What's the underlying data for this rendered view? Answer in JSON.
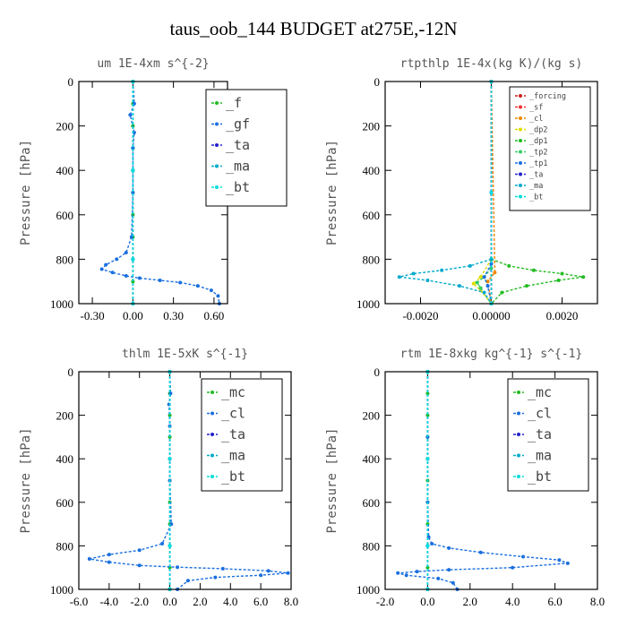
{
  "figure_title": "taus_oob_144  BUDGET at275E,-12N",
  "chart_data": [
    {
      "type": "line",
      "title": "um   1E-4xm s^{-2}",
      "ylabel": "Pressure [hPa]",
      "xlim": [
        -0.4,
        0.7
      ],
      "ylim": [
        1000,
        0
      ],
      "xticks": [
        -0.3,
        0.0,
        0.3,
        0.6
      ],
      "xtick_labels": [
        "-0.30",
        "0.00",
        "0.30",
        "0.60"
      ],
      "yticks": [
        0,
        200,
        400,
        600,
        800,
        1000
      ],
      "legend_position": "top-right",
      "legend": [
        "_f",
        "_gf",
        "_ta",
        "_ma",
        "_bt"
      ],
      "series": [
        {
          "name": "_f",
          "color": "#22bb22",
          "x": [
            0,
            0,
            0,
            0,
            0,
            0,
            0,
            0,
            0,
            0,
            0
          ],
          "y": [
            0,
            100,
            200,
            300,
            400,
            500,
            600,
            700,
            800,
            900,
            1000
          ]
        },
        {
          "name": "_gf",
          "color": "#1a6fdf",
          "x": [
            0,
            0.01,
            -0.02,
            0.01,
            0,
            0,
            -0.01,
            -0.05,
            -0.12,
            -0.2,
            -0.23,
            -0.15,
            -0.05,
            0.05,
            0.2,
            0.35,
            0.48,
            0.58,
            0.63,
            0.64
          ],
          "y": [
            0,
            100,
            150,
            230,
            300,
            500,
            700,
            770,
            800,
            825,
            845,
            860,
            875,
            885,
            895,
            905,
            920,
            940,
            965,
            1000
          ]
        },
        {
          "name": "_ta",
          "color": "#2222cc",
          "x": [
            0,
            0,
            0,
            0
          ],
          "y": [
            0,
            400,
            800,
            1000
          ]
        },
        {
          "name": "_ma",
          "color": "#00aacc",
          "x": [
            0,
            0,
            0,
            0
          ],
          "y": [
            0,
            400,
            800,
            1000
          ]
        },
        {
          "name": "_bt",
          "color": "#00dddd",
          "x": [
            0,
            0,
            0,
            0
          ],
          "y": [
            0,
            400,
            800,
            1000
          ]
        }
      ]
    },
    {
      "type": "line",
      "title": "rtpthlp   1E-4x(kg K)/(kg s)",
      "ylabel": "Pressure [hPa]",
      "xlim": [
        -0.003,
        0.003
      ],
      "ylim": [
        1000,
        0
      ],
      "xticks": [
        -0.002,
        0.0,
        0.002
      ],
      "xtick_labels": [
        "-0.0020",
        "0.00000",
        "0.0020"
      ],
      "yticks": [
        0,
        200,
        400,
        600,
        800,
        1000
      ],
      "legend_position": "top-right",
      "legend": [
        "_forcing",
        "_sf",
        "_cl",
        "_dp2",
        "_dp1",
        "_tp2",
        "_tp1",
        "_ta",
        "_ma",
        "_bt"
      ],
      "series": [
        {
          "name": "_forcing",
          "color": "#cc2222",
          "x": [
            0,
            0,
            0
          ],
          "y": [
            0,
            500,
            1000
          ]
        },
        {
          "name": "_sf",
          "color": "#ee3333",
          "x": [
            0,
            0,
            0
          ],
          "y": [
            0,
            500,
            1000
          ]
        },
        {
          "name": "_cl",
          "color": "#ee8800",
          "x": [
            0,
            0.0001,
            -0.0001,
            0
          ],
          "y": [
            0,
            860,
            900,
            1000
          ]
        },
        {
          "name": "_dp2",
          "color": "#dddd00",
          "x": [
            0,
            -0.0003,
            -0.0005,
            -0.0003,
            0
          ],
          "y": [
            800,
            880,
            910,
            940,
            1000
          ]
        },
        {
          "name": "_dp1",
          "color": "#22bb22",
          "x": [
            0,
            0.0005,
            0.0012,
            0.002,
            0.0026,
            0.0019,
            0.001,
            0.0003,
            0
          ],
          "y": [
            800,
            830,
            850,
            865,
            880,
            895,
            920,
            950,
            1000
          ]
        },
        {
          "name": "_tp2",
          "color": "#33cc66",
          "x": [
            0,
            -0.0002,
            -0.0004,
            -0.0003,
            0
          ],
          "y": [
            840,
            880,
            905,
            930,
            1000
          ]
        },
        {
          "name": "_tp1",
          "color": "#1a6fdf",
          "x": [
            0,
            -0.0002,
            -0.0001,
            0
          ],
          "y": [
            820,
            880,
            920,
            1000
          ]
        },
        {
          "name": "_ta",
          "color": "#2222cc",
          "x": [
            0,
            0,
            0
          ],
          "y": [
            0,
            500,
            1000
          ]
        },
        {
          "name": "_ma",
          "color": "#00aacc",
          "x": [
            0,
            -0.0006,
            -0.0014,
            -0.0022,
            -0.0026,
            -0.0018,
            -0.0009,
            -0.0002,
            0
          ],
          "y": [
            800,
            830,
            850,
            865,
            880,
            895,
            920,
            950,
            1000
          ]
        },
        {
          "name": "_bt",
          "color": "#00dddd",
          "x": [
            0,
            0,
            0
          ],
          "y": [
            0,
            500,
            1000
          ]
        }
      ]
    },
    {
      "type": "line",
      "title": "thlm   1E-5xK s^{-1}",
      "ylabel": "Pressure [hPa]",
      "xlim": [
        -6.0,
        8.0
      ],
      "ylim": [
        1000,
        0
      ],
      "xticks": [
        -6,
        -4,
        -2,
        0,
        2,
        4,
        6,
        8
      ],
      "xtick_labels": [
        "-6.0",
        "-4.0",
        "-2.0",
        "0.0",
        "2.0",
        "4.0",
        "6.0",
        "8.0"
      ],
      "yticks": [
        0,
        200,
        400,
        600,
        800,
        1000
      ],
      "legend_position": "top-right",
      "legend": [
        "_mc",
        "_cl",
        "_ta",
        "_ma",
        "_bt"
      ],
      "series": [
        {
          "name": "_mc",
          "color": "#22bb22",
          "x": [
            0,
            0,
            0,
            0,
            0,
            0,
            0,
            0,
            0,
            0,
            0
          ],
          "y": [
            0,
            100,
            200,
            300,
            400,
            500,
            600,
            700,
            800,
            900,
            1000
          ]
        },
        {
          "name": "_cl",
          "color": "#1a6fdf",
          "x": [
            0,
            0.05,
            -0.05,
            0,
            0,
            0.1,
            -0.5,
            -2.0,
            -4.0,
            -5.3,
            -4.0,
            -2.0,
            0.5,
            3.5,
            6.5,
            7.8,
            6.0,
            3.0,
            1.2,
            0.5
          ],
          "y": [
            0,
            100,
            150,
            250,
            500,
            700,
            790,
            820,
            840,
            860,
            875,
            890,
            898,
            905,
            915,
            925,
            935,
            945,
            960,
            1000
          ]
        },
        {
          "name": "_ta",
          "color": "#2222cc",
          "x": [
            0,
            0,
            0,
            0
          ],
          "y": [
            0,
            400,
            800,
            1000
          ]
        },
        {
          "name": "_ma",
          "color": "#00aacc",
          "x": [
            0,
            0,
            0,
            0
          ],
          "y": [
            0,
            400,
            800,
            1000
          ]
        },
        {
          "name": "_bt",
          "color": "#00dddd",
          "x": [
            0,
            0,
            0,
            0
          ],
          "y": [
            0,
            400,
            800,
            1000
          ]
        }
      ]
    },
    {
      "type": "line",
      "title": "rtm   1E-8xkg kg^{-1} s^{-1}",
      "ylabel": "Pressure [hPa]",
      "xlim": [
        -2.0,
        8.0
      ],
      "ylim": [
        1000,
        0
      ],
      "xticks": [
        -2,
        0,
        2,
        4,
        6,
        8
      ],
      "xtick_labels": [
        "-2.0",
        "0.0",
        "2.0",
        "4.0",
        "6.0",
        "8.0"
      ],
      "yticks": [
        0,
        200,
        400,
        600,
        800,
        1000
      ],
      "legend_position": "top-right",
      "legend": [
        "_mc",
        "_cl",
        "_ta",
        "_ma",
        "_bt"
      ],
      "series": [
        {
          "name": "_mc",
          "color": "#22bb22",
          "x": [
            0,
            0,
            0,
            0,
            0,
            0,
            0,
            0,
            0,
            0,
            0
          ],
          "y": [
            0,
            100,
            200,
            300,
            400,
            500,
            600,
            700,
            800,
            900,
            1000
          ]
        },
        {
          "name": "_cl",
          "color": "#1a6fdf",
          "x": [
            0,
            0,
            0,
            0.05,
            0.2,
            1.0,
            2.5,
            4.5,
            6.2,
            6.6,
            4.0,
            1.0,
            -0.5,
            -1.4,
            -1.0,
            0.5,
            1.2,
            1.4
          ],
          "y": [
            0,
            300,
            600,
            760,
            790,
            810,
            830,
            850,
            865,
            880,
            900,
            910,
            918,
            925,
            935,
            950,
            970,
            1000
          ]
        },
        {
          "name": "_ta",
          "color": "#2222cc",
          "x": [
            0,
            0,
            0,
            0
          ],
          "y": [
            0,
            400,
            800,
            1000
          ]
        },
        {
          "name": "_ma",
          "color": "#00aacc",
          "x": [
            0,
            0,
            0,
            0
          ],
          "y": [
            0,
            400,
            800,
            1000
          ]
        },
        {
          "name": "_bt",
          "color": "#00dddd",
          "x": [
            0,
            0,
            0,
            0
          ],
          "y": [
            0,
            400,
            800,
            1000
          ]
        }
      ]
    }
  ]
}
